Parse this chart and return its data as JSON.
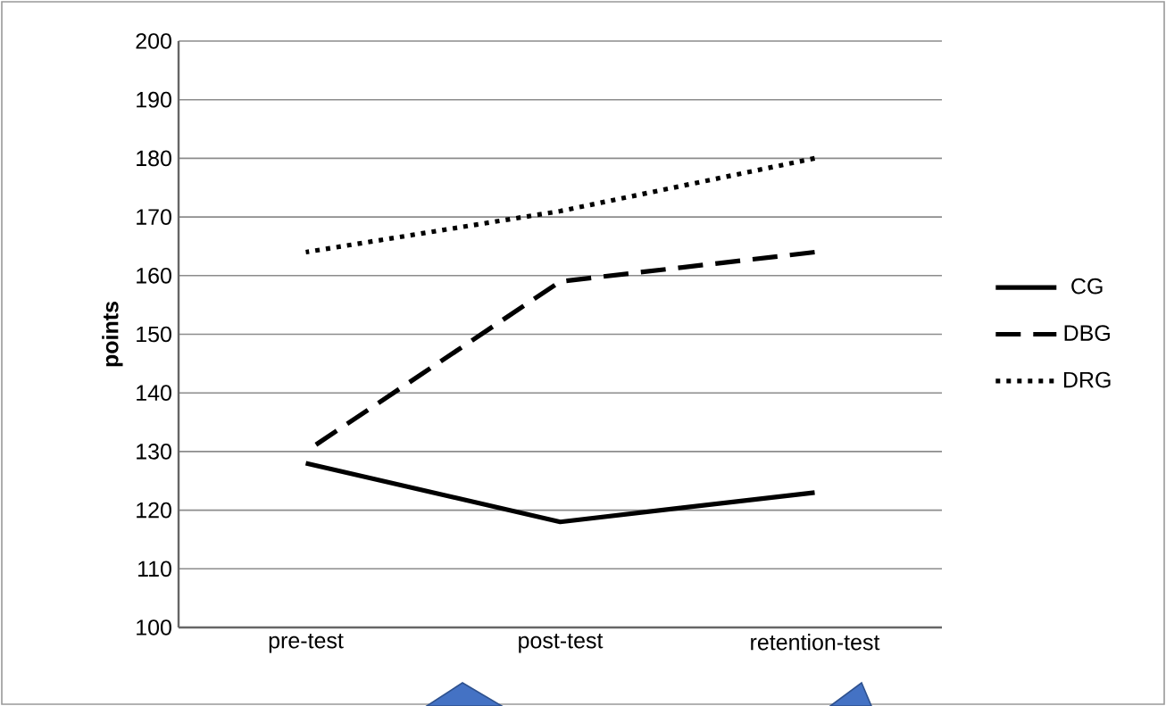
{
  "chart_data": {
    "type": "line",
    "ylabel": "points",
    "categories": [
      "pre-test",
      "post-test",
      "retention-test"
    ],
    "series": [
      {
        "name": "CG",
        "color": "#000000",
        "line_style": "solid",
        "values": [
          128,
          118,
          123
        ]
      },
      {
        "name": "DBG",
        "color": "#000000",
        "line_style": "dashed",
        "values": [
          130,
          159,
          164
        ]
      },
      {
        "name": "DRG",
        "color": "#000000",
        "line_style": "dotted",
        "values": [
          164,
          171,
          180
        ]
      }
    ],
    "ylim": [
      100,
      200
    ],
    "yticks": [
      100,
      110,
      120,
      130,
      140,
      150,
      160,
      170,
      180,
      190,
      200
    ],
    "grid": "y",
    "legend": "right"
  }
}
